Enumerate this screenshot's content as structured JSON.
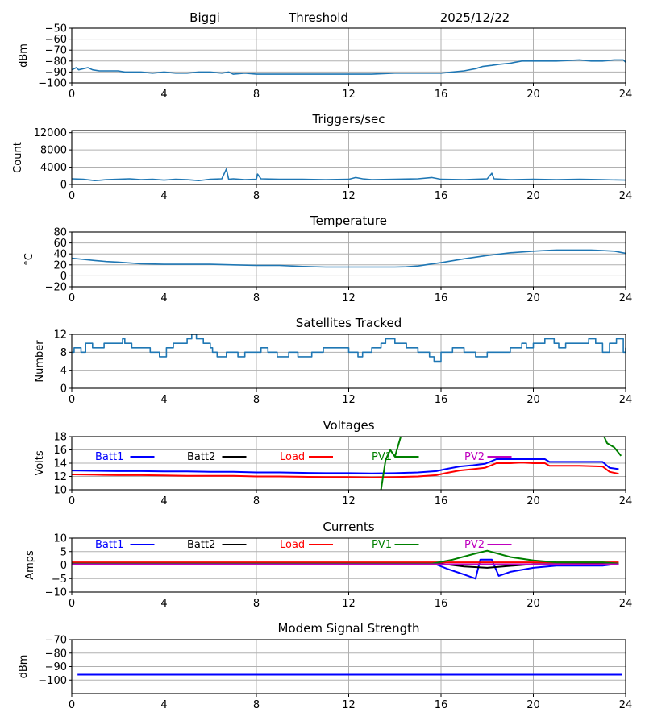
{
  "header": {
    "site": "Biggi",
    "label": "Threshold",
    "date": "2025/12/22"
  },
  "chart_data": [
    {
      "id": "threshold",
      "type": "line",
      "title": "",
      "xlabel": "",
      "ylabel": "dBm",
      "xlim": [
        0,
        24
      ],
      "ylim": [
        -100,
        -50
      ],
      "xticks": [
        0,
        4,
        8,
        12,
        16,
        20,
        24
      ],
      "yticks": [
        -50,
        -60,
        -70,
        -80,
        -90,
        -100
      ],
      "ytick_labels": [
        "−50",
        "−60",
        "−70",
        "−80",
        "−90",
        "−100"
      ],
      "grid": true,
      "series": [
        {
          "name": "Threshold",
          "color": "#1f77b4",
          "x": [
            0,
            0.2,
            0.3,
            0.5,
            0.7,
            0.9,
            1.2,
            2,
            2.3,
            3,
            3.5,
            4,
            4.5,
            5,
            5.5,
            6,
            6.5,
            6.8,
            7,
            7.5,
            8,
            9,
            10,
            11,
            12,
            13,
            14,
            15,
            16,
            16.5,
            17,
            17.5,
            17.8,
            18.2,
            18.5,
            19,
            19.5,
            20,
            21,
            22,
            22.5,
            23,
            23.5,
            23.9,
            24
          ],
          "y": [
            -88,
            -86,
            -88,
            -87,
            -86,
            -88,
            -89,
            -89,
            -90,
            -90,
            -91,
            -90,
            -91,
            -91,
            -90,
            -90,
            -91,
            -90,
            -92,
            -91,
            -92,
            -92,
            -92,
            -92,
            -92,
            -92,
            -91,
            -91,
            -91,
            -90,
            -89,
            -87,
            -85,
            -84,
            -83,
            -82,
            -80,
            -80,
            -80,
            -79,
            -80,
            -80,
            -79,
            -79,
            -81
          ]
        }
      ]
    },
    {
      "id": "triggers",
      "type": "line",
      "title": "Triggers/sec",
      "xlabel": "",
      "ylabel": "Count",
      "xlim": [
        0,
        24
      ],
      "ylim": [
        0,
        12500
      ],
      "xticks": [
        0,
        4,
        8,
        12,
        16,
        20,
        24
      ],
      "yticks": [
        0,
        4000,
        8000,
        12000
      ],
      "ytick_labels": [
        "0",
        "4000",
        "8000",
        "12000"
      ],
      "grid": true,
      "series": [
        {
          "name": "Triggers",
          "color": "#1f77b4",
          "x": [
            0,
            0.5,
            1,
            1.5,
            2,
            2.5,
            3,
            3.5,
            4,
            4.5,
            5,
            5.5,
            6,
            6.5,
            6.7,
            6.8,
            7,
            7.5,
            8,
            8.05,
            8.2,
            9,
            10,
            11,
            12,
            12.3,
            12.6,
            13,
            14,
            15,
            15.6,
            16,
            17,
            18,
            18.2,
            18.3,
            19,
            20,
            21,
            22,
            23,
            24
          ],
          "y": [
            1300,
            1200,
            900,
            1100,
            1200,
            1300,
            1100,
            1200,
            1000,
            1200,
            1100,
            900,
            1200,
            1300,
            3600,
            1200,
            1300,
            1100,
            1200,
            2400,
            1300,
            1200,
            1200,
            1100,
            1200,
            1600,
            1300,
            1100,
            1200,
            1300,
            1600,
            1200,
            1100,
            1300,
            2600,
            1300,
            1100,
            1200,
            1100,
            1200,
            1100,
            1000
          ]
        }
      ]
    },
    {
      "id": "temperature",
      "type": "line",
      "title": "Temperature",
      "xlabel": "",
      "ylabel": "°C",
      "xlim": [
        0,
        24
      ],
      "ylim": [
        -20,
        80
      ],
      "xticks": [
        0,
        4,
        8,
        12,
        16,
        20,
        24
      ],
      "yticks": [
        80,
        60,
        40,
        20,
        0,
        -20
      ],
      "ytick_labels": [
        "80",
        "60",
        "40",
        "20",
        "0",
        "−20"
      ],
      "grid": true,
      "series": [
        {
          "name": "Temperature",
          "color": "#1f77b4",
          "x": [
            0,
            0.5,
            1,
            1.5,
            2,
            3,
            4,
            5,
            6,
            7,
            8,
            9,
            10,
            11,
            12,
            13,
            14,
            14.5,
            15,
            15.5,
            16,
            17,
            18,
            19,
            20,
            20.5,
            21,
            22,
            22.5,
            23,
            23.5,
            24
          ],
          "y": [
            32,
            30,
            28,
            26,
            25,
            22,
            21,
            21,
            21,
            20,
            19,
            19,
            17,
            16,
            16,
            16,
            16,
            16.5,
            18,
            21,
            24,
            31,
            37,
            42,
            45,
            46,
            47,
            47,
            47,
            46,
            45,
            41
          ]
        }
      ]
    },
    {
      "id": "satellites",
      "type": "line",
      "title": "Satellites Tracked",
      "xlabel": "",
      "ylabel": "Number",
      "xlim": [
        0,
        24
      ],
      "ylim": [
        0,
        12
      ],
      "xticks": [
        0,
        4,
        8,
        12,
        16,
        20,
        24
      ],
      "yticks": [
        0,
        4,
        8,
        12
      ],
      "ytick_labels": [
        "0",
        "4",
        "8",
        "12"
      ],
      "grid": true,
      "step": true,
      "series": [
        {
          "name": "Satellites",
          "color": "#1f77b4",
          "x": [
            0,
            0.1,
            0.4,
            0.6,
            0.9,
            1.4,
            1.6,
            2.2,
            2.3,
            2.6,
            3.4,
            3.8,
            4.0,
            4.1,
            4.4,
            5.0,
            5.2,
            5.4,
            5.7,
            6.0,
            6.1,
            6.3,
            6.7,
            7.2,
            7.5,
            8.2,
            8.5,
            8.9,
            9.4,
            9.8,
            10.0,
            10.4,
            10.6,
            10.9,
            11.5,
            12.0,
            12.4,
            12.6,
            13.0,
            13.4,
            13.6,
            14.0,
            14.5,
            15.0,
            15.5,
            15.7,
            16.0,
            16.5,
            17.0,
            17.5,
            18.0,
            18.5,
            19.0,
            19.5,
            19.7,
            20.0,
            20.5,
            20.9,
            21.1,
            21.4,
            22.0,
            22.4,
            22.7,
            23.0,
            23.3,
            23.6,
            23.9,
            24
          ],
          "y": [
            8,
            9,
            8,
            10,
            9,
            10,
            10,
            11,
            10,
            9,
            8,
            7,
            7,
            9,
            10,
            11,
            12,
            11,
            10,
            9,
            8,
            7,
            8,
            7,
            8,
            9,
            8,
            7,
            8,
            7,
            7,
            8,
            8,
            9,
            9,
            8,
            7,
            8,
            9,
            10,
            11,
            10,
            9,
            8,
            7,
            6,
            8,
            9,
            8,
            7,
            8,
            8,
            9,
            10,
            9,
            10,
            11,
            10,
            9,
            10,
            10,
            11,
            10,
            8,
            10,
            11,
            8,
            9
          ]
        }
      ]
    },
    {
      "id": "voltages",
      "type": "line",
      "title": "Voltages",
      "xlabel": "",
      "ylabel": "Volts",
      "xlim": [
        0,
        24
      ],
      "ylim": [
        10,
        18
      ],
      "xticks": [
        0,
        4,
        8,
        12,
        16,
        20,
        24
      ],
      "yticks": [
        10,
        12,
        14,
        16,
        18
      ],
      "ytick_labels": [
        "10",
        "12",
        "14",
        "16",
        "18"
      ],
      "grid": true,
      "legend": "inline-top",
      "series": [
        {
          "name": "Batt1",
          "color": "#0000ff",
          "x": [
            0,
            1,
            2,
            3,
            4,
            5,
            6,
            7,
            8,
            9,
            10,
            11,
            12,
            13,
            14,
            15,
            15.8,
            16.2,
            16.8,
            17.4,
            17.9,
            18.4,
            19,
            19.5,
            20,
            20.5,
            20.7,
            21.5,
            22,
            23,
            23.3,
            23.7
          ],
          "y": [
            12.9,
            12.85,
            12.8,
            12.8,
            12.75,
            12.75,
            12.7,
            12.7,
            12.6,
            12.6,
            12.55,
            12.5,
            12.5,
            12.45,
            12.5,
            12.6,
            12.8,
            13.1,
            13.5,
            13.7,
            13.9,
            14.6,
            14.6,
            14.6,
            14.6,
            14.6,
            14.2,
            14.2,
            14.2,
            14.2,
            13.3,
            13.1
          ]
        },
        {
          "name": "Batt2",
          "color": "#000000",
          "x": [],
          "y": []
        },
        {
          "name": "Load",
          "color": "#ff0000",
          "x": [
            0,
            1,
            2,
            3,
            4,
            5,
            6,
            7,
            8,
            9,
            10,
            11,
            12,
            13,
            14,
            15,
            15.8,
            16.2,
            16.8,
            17.4,
            17.9,
            18.4,
            19,
            19.5,
            20,
            20.5,
            20.7,
            21.5,
            22,
            23,
            23.3,
            23.7
          ],
          "y": [
            12.3,
            12.25,
            12.2,
            12.2,
            12.15,
            12.1,
            12.1,
            12.1,
            12.0,
            12.0,
            11.95,
            11.9,
            11.9,
            11.85,
            11.9,
            12.0,
            12.2,
            12.5,
            12.9,
            13.1,
            13.3,
            14.0,
            14.0,
            14.1,
            14.0,
            14.0,
            13.6,
            13.6,
            13.6,
            13.5,
            12.7,
            12.4
          ]
        },
        {
          "name": "PV1",
          "color": "#008000",
          "x": [
            13.4,
            13.6,
            13.8,
            14.0,
            14.3,
            18.0,
            23.0,
            23.2,
            23.5,
            23.8
          ],
          "y": [
            10,
            14.5,
            16,
            15,
            18.5,
            18.5,
            18.5,
            17.0,
            16.4,
            15.1
          ]
        },
        {
          "name": "PV2",
          "color": "#bf00bf",
          "x": [],
          "y": []
        }
      ]
    },
    {
      "id": "currents",
      "type": "line",
      "title": "Currents",
      "xlabel": "",
      "ylabel": "Amps",
      "xlim": [
        0,
        24
      ],
      "ylim": [
        -10,
        10
      ],
      "xticks": [
        0,
        4,
        8,
        12,
        16,
        20,
        24
      ],
      "yticks": [
        10,
        5,
        0,
        -5,
        -10
      ],
      "ytick_labels": [
        "10",
        "5",
        "0",
        "−5",
        "−10"
      ],
      "grid": true,
      "legend": "inline-top",
      "series": [
        {
          "name": "Batt1",
          "color": "#0000ff",
          "x": [
            0,
            4,
            8,
            12,
            15.8,
            16.3,
            17.0,
            17.5,
            17.7,
            18.2,
            18.5,
            19.0,
            20.0,
            21.0,
            23.0,
            23.7
          ],
          "y": [
            0.5,
            0.5,
            0.5,
            0.5,
            0.2,
            -1.5,
            -3.5,
            -5.0,
            2.0,
            2.0,
            -4.0,
            -2.5,
            -1.0,
            -0.2,
            -0.2,
            0.5
          ]
        },
        {
          "name": "Batt2",
          "color": "#000000",
          "x": [
            0,
            16,
            17,
            18,
            19,
            20,
            23.7
          ],
          "y": [
            0.5,
            0.5,
            -0.5,
            -1.0,
            -0.3,
            0.4,
            0.5
          ]
        },
        {
          "name": "Load",
          "color": "#ff0000",
          "x": [
            0,
            4,
            8,
            12,
            16,
            20,
            23.7
          ],
          "y": [
            1.0,
            1.0,
            1.0,
            1.0,
            1.0,
            1.0,
            1.0
          ]
        },
        {
          "name": "PV1",
          "color": "#008000",
          "x": [
            0,
            15.6,
            16.5,
            17.5,
            18.0,
            19.0,
            20.0,
            21.0,
            23.0,
            23.7
          ],
          "y": [
            0.5,
            0.5,
            2.0,
            4.3,
            5.3,
            3.0,
            1.7,
            1.0,
            1.0,
            0.5
          ]
        },
        {
          "name": "PV2",
          "color": "#bf00bf",
          "x": [
            0,
            4,
            8,
            12,
            16,
            20,
            23.7
          ],
          "y": [
            0.3,
            0.3,
            0.3,
            0.3,
            0.3,
            0.3,
            0.3
          ]
        }
      ]
    },
    {
      "id": "modem",
      "type": "line",
      "title": "Modem Signal Strength",
      "xlabel": "",
      "ylabel": "dBm",
      "xlim": [
        0,
        24
      ],
      "ylim": [
        -110,
        -70
      ],
      "xticks": [
        0,
        4,
        8,
        12,
        16,
        20,
        24
      ],
      "yticks": [
        -70,
        -80,
        -90,
        -100
      ],
      "ytick_labels": [
        "−70",
        "−80",
        "−90",
        "−100"
      ],
      "grid": true,
      "series": [
        {
          "name": "Modem",
          "color": "#0000ff",
          "x": [
            0.25,
            23.85
          ],
          "y": [
            -96,
            -96
          ]
        }
      ]
    }
  ]
}
